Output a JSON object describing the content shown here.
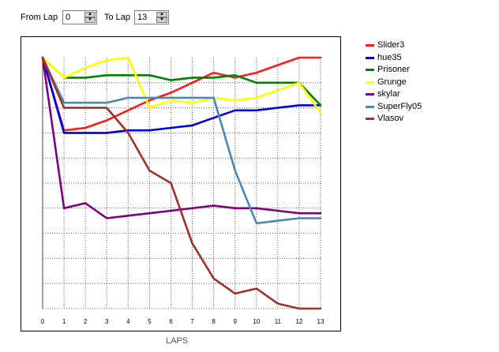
{
  "controls": {
    "from_label": "From Lap",
    "from_value": "0",
    "to_label": "To Lap",
    "to_value": "13"
  },
  "chart_data": {
    "type": "line",
    "xlabel": "LAPS",
    "ylabel": "",
    "title": "",
    "grid": true,
    "legend_position": "right",
    "x": [
      0,
      1,
      2,
      3,
      4,
      5,
      6,
      7,
      8,
      9,
      10,
      11,
      12,
      13
    ],
    "xlim": [
      0,
      13
    ],
    "ylim": [
      11,
      1
    ],
    "series": [
      {
        "name": "Slider3",
        "color": "#ff1a1a",
        "values": [
          1,
          3.9,
          3.8,
          3.5,
          3.1,
          2.7,
          2.4,
          2.0,
          1.6,
          1.8,
          1.6,
          1.3,
          1.0,
          1.0
        ]
      },
      {
        "name": "hue35",
        "color": "#0000dd",
        "values": [
          1,
          4.0,
          4.0,
          4.0,
          3.9,
          3.9,
          3.8,
          3.7,
          3.4,
          3.1,
          3.1,
          3.0,
          2.9,
          2.9
        ]
      },
      {
        "name": "Prisoner",
        "color": "#008000",
        "values": [
          1,
          1.8,
          1.8,
          1.7,
          1.7,
          1.7,
          1.9,
          1.8,
          1.8,
          1.7,
          2.0,
          2.0,
          2.0,
          2.9
        ]
      },
      {
        "name": "Grunge",
        "color": "#ffff00",
        "values": [
          1,
          1.8,
          1.4,
          1.1,
          1.0,
          3.0,
          2.7,
          2.8,
          2.6,
          2.7,
          2.6,
          2.3,
          2.0,
          3.2
        ]
      },
      {
        "name": "skylar",
        "color": "#800080",
        "values": [
          1,
          7.0,
          6.8,
          7.4,
          7.3,
          7.2,
          7.1,
          7.0,
          6.9,
          7.0,
          7.0,
          7.1,
          7.2,
          7.2
        ]
      },
      {
        "name": "SuperFly05",
        "color": "#4a88b8",
        "values": [
          1,
          2.8,
          2.8,
          2.8,
          2.6,
          2.6,
          2.6,
          2.6,
          2.6,
          5.5,
          7.6,
          7.5,
          7.4,
          7.4
        ]
      },
      {
        "name": "Vlasov",
        "color": "#a0302a",
        "values": [
          1,
          3.0,
          3.0,
          3.0,
          4.0,
          5.5,
          6.0,
          8.4,
          9.8,
          10.4,
          10.2,
          10.8,
          11.0,
          11.0
        ]
      }
    ]
  }
}
